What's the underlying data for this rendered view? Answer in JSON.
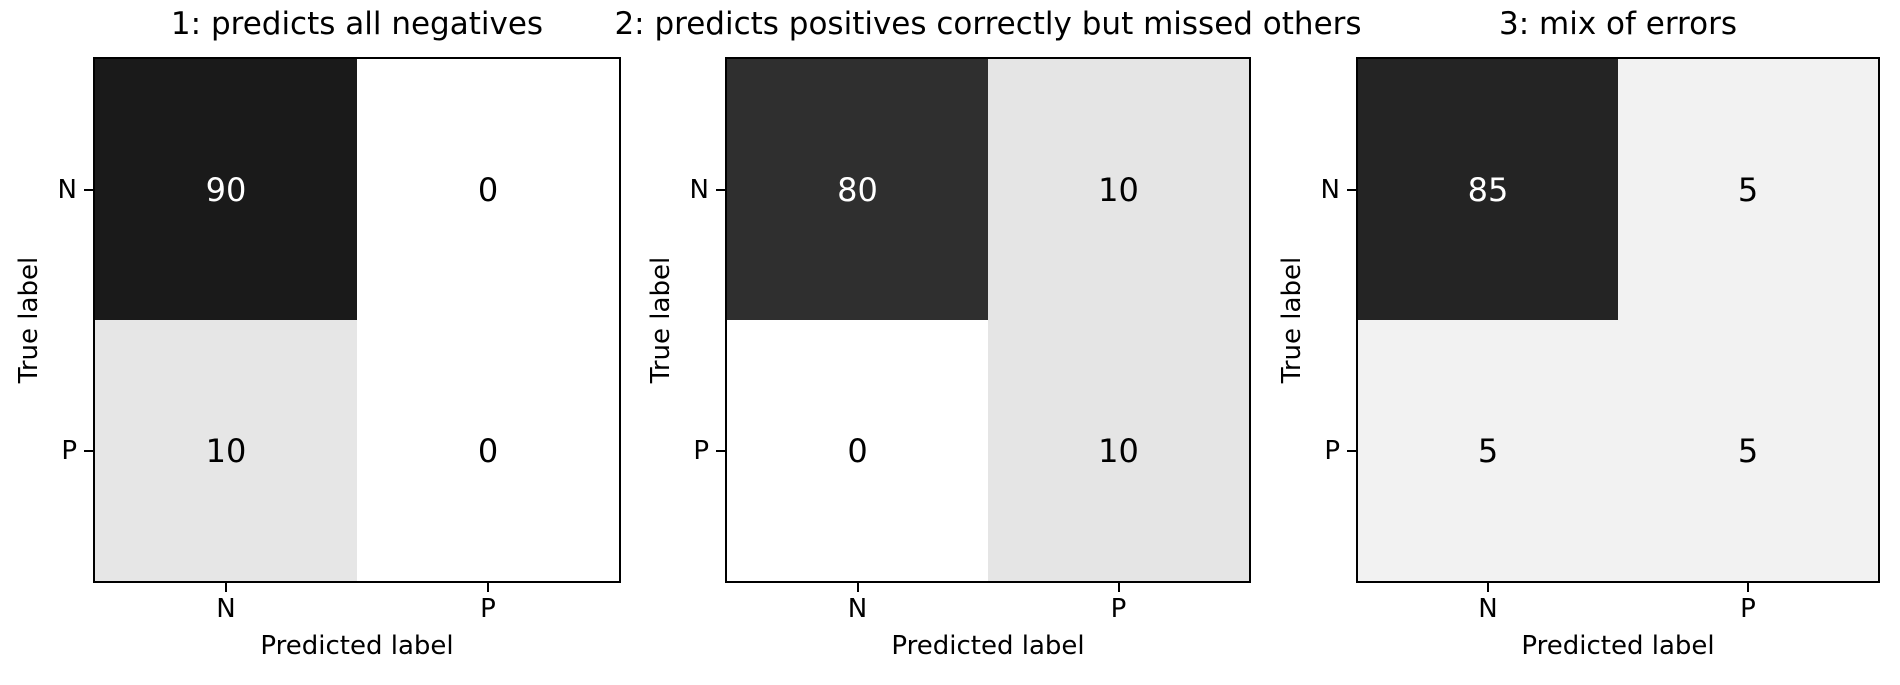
{
  "figure": {
    "background": "#ffffff",
    "text_color": "#000000",
    "spine_color": "#000000"
  },
  "chart_data": [
    {
      "type": "heatmap",
      "title": "1: predicts all negatives",
      "xlabel": "Predicted label",
      "ylabel": "True label",
      "x_ticklabels": [
        "N",
        "P"
      ],
      "y_ticklabels": [
        "N",
        "P"
      ],
      "matrix": [
        [
          90,
          0
        ],
        [
          10,
          0
        ]
      ],
      "colormap": "Greys",
      "cell_colors": [
        [
          "#1a1a1a",
          "#ffffff"
        ],
        [
          "#e6e6e6",
          "#ffffff"
        ]
      ],
      "text_colors": [
        [
          "#ffffff",
          "#000000"
        ],
        [
          "#000000",
          "#000000"
        ]
      ]
    },
    {
      "type": "heatmap",
      "title": "2: predicts positives correctly but missed others",
      "xlabel": "Predicted label",
      "ylabel": "True label",
      "x_ticklabels": [
        "N",
        "P"
      ],
      "y_ticklabels": [
        "N",
        "P"
      ],
      "matrix": [
        [
          80,
          10
        ],
        [
          0,
          10
        ]
      ],
      "colormap": "Greys",
      "cell_colors": [
        [
          "#2f2f2f",
          "#e5e5e5"
        ],
        [
          "#ffffff",
          "#e5e5e5"
        ]
      ],
      "text_colors": [
        [
          "#ffffff",
          "#000000"
        ],
        [
          "#000000",
          "#000000"
        ]
      ]
    },
    {
      "type": "heatmap",
      "title": "3: mix of errors",
      "xlabel": "Predicted label",
      "ylabel": "True label",
      "x_ticklabels": [
        "N",
        "P"
      ],
      "y_ticklabels": [
        "N",
        "P"
      ],
      "matrix": [
        [
          85,
          5
        ],
        [
          5,
          5
        ]
      ],
      "colormap": "Greys",
      "cell_colors": [
        [
          "#242424",
          "#f2f2f2"
        ],
        [
          "#f2f2f2",
          "#f2f2f2"
        ]
      ],
      "text_colors": [
        [
          "#ffffff",
          "#000000"
        ],
        [
          "#000000",
          "#000000"
        ]
      ]
    }
  ]
}
